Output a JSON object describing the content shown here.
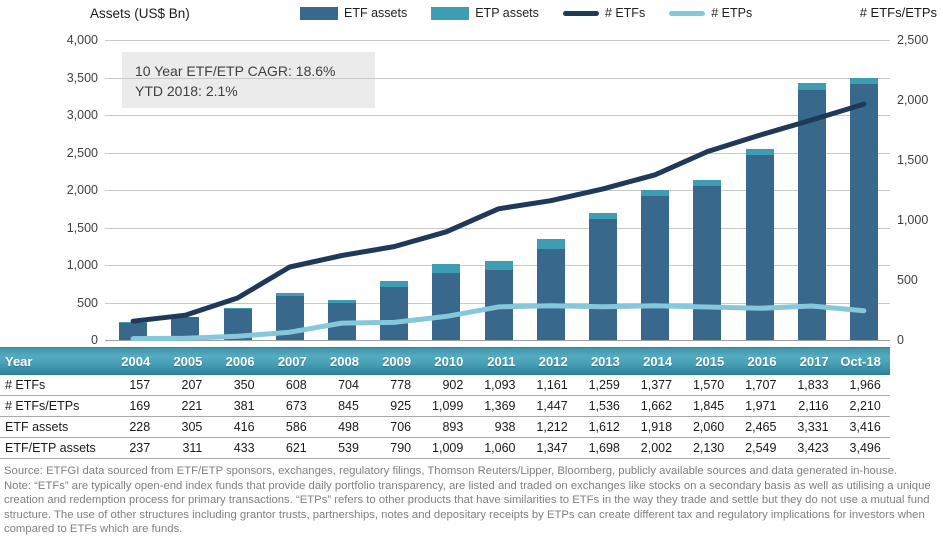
{
  "header": {
    "left_axis_title": "Assets (US$ Bn)",
    "right_axis_title": "# ETFs/ETPs"
  },
  "annotation": {
    "line1": "10 Year ETF/ETP CAGR: 18.6%",
    "line2": "YTD 2018: 2.1%"
  },
  "chart_data": {
    "type": "bar",
    "subtype": "stacked-bars-with-two-lines",
    "title": "",
    "categories": [
      "2004",
      "2005",
      "2006",
      "2007",
      "2008",
      "2009",
      "2010",
      "2011",
      "2012",
      "2013",
      "2014",
      "2015",
      "2016",
      "2017",
      "Oct-18"
    ],
    "left_axis": {
      "title": "Assets (US$ Bn)",
      "min": 0,
      "max": 4000,
      "step": 500
    },
    "right_axis": {
      "title": "# ETFs/ETPs",
      "min": 0,
      "max": 2500,
      "step": 500
    },
    "gridlines": true,
    "legend_position": "top",
    "series": [
      {
        "name": "ETF assets",
        "type": "bar",
        "axis": "left",
        "stack": "assets",
        "color": "#38688c",
        "values": [
          228,
          305,
          416,
          586,
          498,
          706,
          893,
          938,
          1212,
          1612,
          1918,
          2060,
          2465,
          3331,
          3416
        ]
      },
      {
        "name": "ETP assets",
        "type": "bar",
        "axis": "left",
        "stack": "assets",
        "color": "#3e9db2",
        "values": [
          9,
          6,
          17,
          35,
          41,
          84,
          116,
          122,
          135,
          86,
          84,
          70,
          84,
          92,
          80
        ],
        "note": "segment stacked on top of ETF assets; stacked totals equal the ETF/ETP assets table row"
      },
      {
        "name": "# ETFs",
        "type": "line",
        "axis": "right",
        "color": "#1f3a58",
        "values": [
          157,
          207,
          350,
          608,
          704,
          778,
          902,
          1093,
          1161,
          1259,
          1377,
          1570,
          1707,
          1833,
          1966
        ]
      },
      {
        "name": "# ETPs",
        "type": "line",
        "axis": "right",
        "color": "#85c7db",
        "values": [
          12,
          14,
          31,
          65,
          141,
          147,
          197,
          276,
          286,
          277,
          285,
          275,
          264,
          283,
          244
        ]
      }
    ]
  },
  "table": {
    "columns": [
      "Year",
      "2004",
      "2005",
      "2006",
      "2007",
      "2008",
      "2009",
      "2010",
      "2011",
      "2012",
      "2013",
      "2014",
      "2015",
      "2016",
      "2017",
      "Oct-18"
    ],
    "rows": [
      {
        "label": "# ETFs",
        "values": [
          157,
          207,
          350,
          608,
          704,
          778,
          902,
          1093,
          1161,
          1259,
          1377,
          1570,
          1707,
          1833,
          1966
        ]
      },
      {
        "label": "# ETFs/ETPs",
        "values": [
          169,
          221,
          381,
          673,
          845,
          925,
          1099,
          1369,
          1447,
          1536,
          1662,
          1845,
          1971,
          2116,
          2210
        ]
      },
      {
        "label": "ETF assets",
        "values": [
          228,
          305,
          416,
          586,
          498,
          706,
          893,
          938,
          1212,
          1612,
          1918,
          2060,
          2465,
          3331,
          3416
        ]
      },
      {
        "label": "ETF/ETP assets",
        "values": [
          237,
          311,
          433,
          621,
          539,
          790,
          1009,
          1060,
          1347,
          1698,
          2002,
          2130,
          2549,
          3423,
          3496
        ]
      }
    ]
  },
  "footer": {
    "source": "Source: ETFGI data sourced from ETF/ETP sponsors, exchanges, regulatory filings, Thomson Reuters/Lipper, Bloomberg, publicly available sources and data generated in-house.",
    "note": "Note: “ETFs” are typically open-end index funds that provide daily portfolio transparency, are listed and traded on exchanges like stocks on a secondary basis as well as utilising a unique creation and redemption process for primary transactions. “ETPs” refers to other products that have similarities to ETFs in the way they trade and settle but they do not use a mutual fund structure. The use of other structures including grantor trusts, partnerships, notes and depositary receipts by ETPs can create different tax and regulatory implications for investors when compared to ETFs which are funds."
  },
  "colors": {
    "etf_bar": "#38688c",
    "etp_bar": "#3e9db2",
    "etfs_line": "#1f3a58",
    "etps_line": "#85c7db",
    "gridline": "#c8c8c8",
    "table_header_top": "#3e93a9",
    "table_header_bottom": "#2b7f99",
    "footer_text": "#7f7f7f"
  }
}
